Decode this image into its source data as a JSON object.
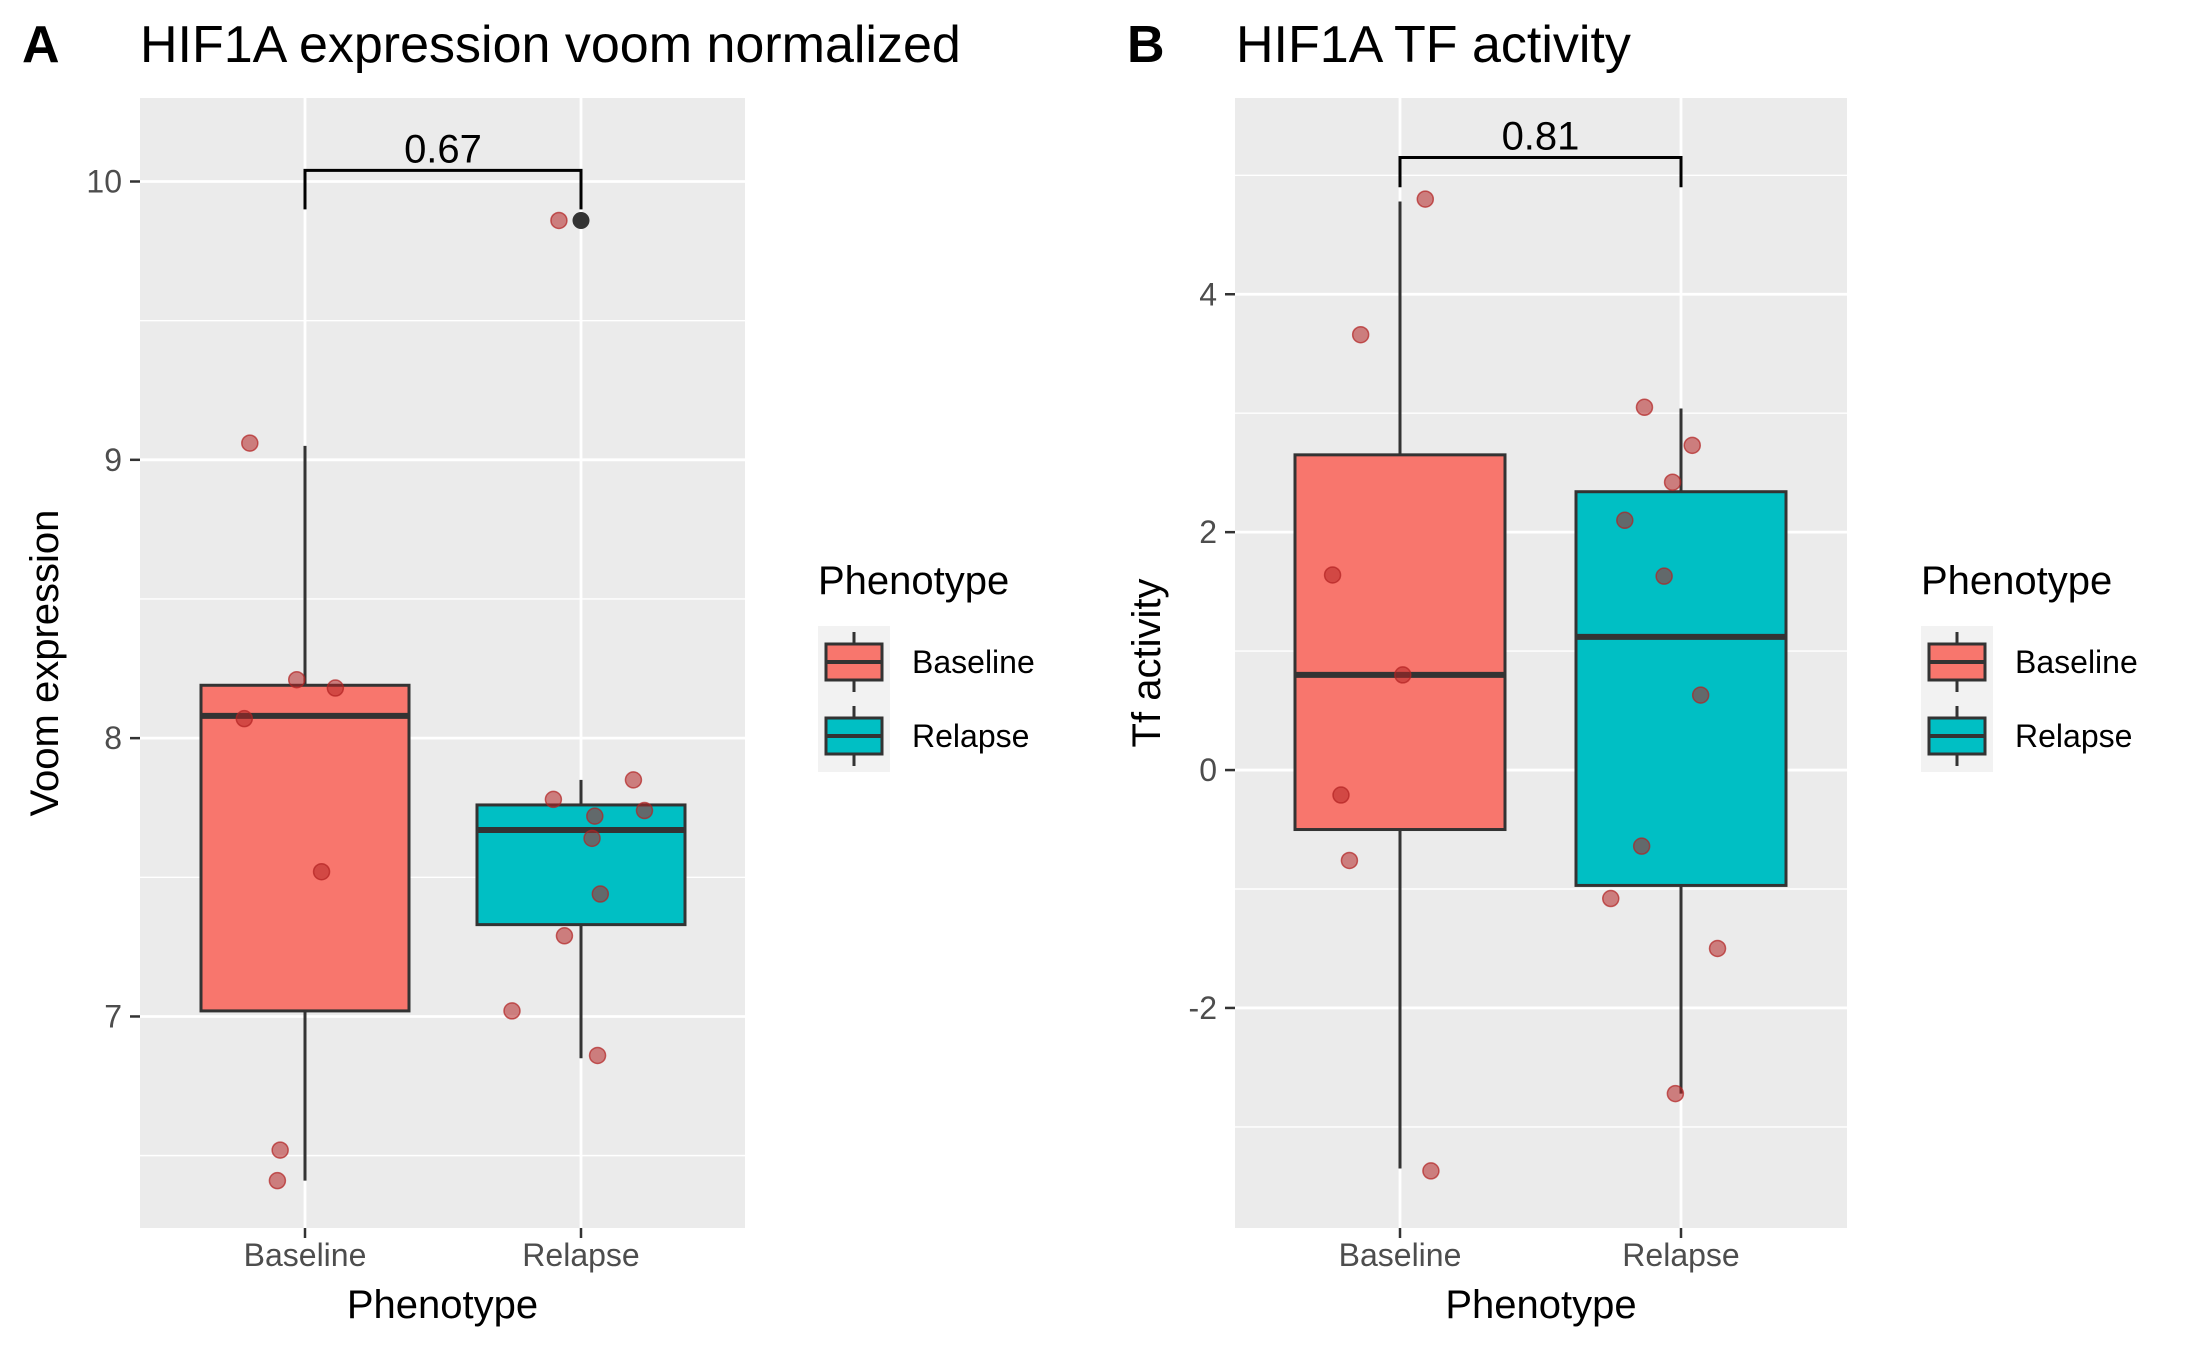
{
  "colors": {
    "panel_bg": "#ebebeb",
    "grid": "#ffffff",
    "baseline_fill": "#f8766d",
    "relapse_fill": "#00bfc4",
    "box_stroke": "#333333",
    "point_fill": "#b22222",
    "outlier": "#333333"
  },
  "chart_data": [
    {
      "type": "box",
      "tag": "A",
      "title": "HIF1A expression voom normalized",
      "xlabel": "Phenotype",
      "ylabel": "Voom expression",
      "categories": [
        "Baseline",
        "Relapse"
      ],
      "ylim": [
        6.24,
        10.3
      ],
      "yticks": [
        7,
        8,
        9,
        10
      ],
      "yticklabels": [
        "7",
        "8",
        "9",
        "10"
      ],
      "boxes": [
        {
          "group": "Baseline",
          "whisker_low": 6.41,
          "q1": 7.02,
          "median": 8.08,
          "q3": 8.19,
          "whisker_high": 9.05
        },
        {
          "group": "Relapse",
          "whisker_low": 6.85,
          "q1": 7.33,
          "median": 7.67,
          "q3": 7.76,
          "whisker_high": 7.85
        }
      ],
      "outliers": [
        {
          "group": "Relapse",
          "y": 9.86
        }
      ],
      "points": [
        {
          "group": "Baseline",
          "dx": -0.2,
          "y": 9.06
        },
        {
          "group": "Baseline",
          "dx": -0.03,
          "y": 8.21
        },
        {
          "group": "Baseline",
          "dx": 0.11,
          "y": 8.18
        },
        {
          "group": "Baseline",
          "dx": -0.22,
          "y": 8.07
        },
        {
          "group": "Baseline",
          "dx": 0.06,
          "y": 7.52
        },
        {
          "group": "Baseline",
          "dx": -0.09,
          "y": 6.52
        },
        {
          "group": "Baseline",
          "dx": -0.1,
          "y": 6.41
        },
        {
          "group": "Relapse",
          "dx": -0.08,
          "y": 9.86
        },
        {
          "group": "Relapse",
          "dx": 0.19,
          "y": 7.85
        },
        {
          "group": "Relapse",
          "dx": -0.1,
          "y": 7.78
        },
        {
          "group": "Relapse",
          "dx": 0.23,
          "y": 7.74
        },
        {
          "group": "Relapse",
          "dx": 0.05,
          "y": 7.72
        },
        {
          "group": "Relapse",
          "dx": 0.04,
          "y": 7.64
        },
        {
          "group": "Relapse",
          "dx": 0.07,
          "y": 7.44
        },
        {
          "group": "Relapse",
          "dx": -0.06,
          "y": 7.29
        },
        {
          "group": "Relapse",
          "dx": -0.25,
          "y": 7.02
        },
        {
          "group": "Relapse",
          "dx": 0.06,
          "y": 6.86
        }
      ],
      "comparison": {
        "label": "0.67",
        "y": 10.04,
        "tip": 9.9
      },
      "legend": {
        "title": "Phenotype",
        "entries": [
          "Baseline",
          "Relapse"
        ]
      }
    },
    {
      "type": "box",
      "tag": "B",
      "title": "HIF1A TF activity",
      "xlabel": "Phenotype",
      "ylabel": "Tf activity",
      "categories": [
        "Baseline",
        "Relapse"
      ],
      "ylim": [
        -3.85,
        5.65
      ],
      "yticks": [
        -2,
        0,
        2,
        4
      ],
      "yticklabels": [
        "-2",
        "0",
        "2",
        "4"
      ],
      "boxes": [
        {
          "group": "Baseline",
          "whisker_low": -3.35,
          "q1": -0.5,
          "median": 0.8,
          "q3": 2.65,
          "whisker_high": 4.78
        },
        {
          "group": "Relapse",
          "whisker_low": -2.72,
          "q1": -0.97,
          "median": 1.12,
          "q3": 2.34,
          "whisker_high": 3.04
        }
      ],
      "outliers": [],
      "points": [
        {
          "group": "Baseline",
          "dx": 0.09,
          "y": 4.8
        },
        {
          "group": "Baseline",
          "dx": -0.14,
          "y": 3.66
        },
        {
          "group": "Baseline",
          "dx": -0.24,
          "y": 1.64
        },
        {
          "group": "Baseline",
          "dx": 0.01,
          "y": 0.8
        },
        {
          "group": "Baseline",
          "dx": -0.21,
          "y": -0.21
        },
        {
          "group": "Baseline",
          "dx": -0.18,
          "y": -0.76
        },
        {
          "group": "Baseline",
          "dx": 0.11,
          "y": -3.37
        },
        {
          "group": "Relapse",
          "dx": -0.13,
          "y": 3.05
        },
        {
          "group": "Relapse",
          "dx": 0.04,
          "y": 2.73
        },
        {
          "group": "Relapse",
          "dx": -0.03,
          "y": 2.42
        },
        {
          "group": "Relapse",
          "dx": -0.2,
          "y": 2.1
        },
        {
          "group": "Relapse",
          "dx": -0.06,
          "y": 1.63
        },
        {
          "group": "Relapse",
          "dx": 0.07,
          "y": 0.63
        },
        {
          "group": "Relapse",
          "dx": -0.14,
          "y": -0.64
        },
        {
          "group": "Relapse",
          "dx": -0.25,
          "y": -1.08
        },
        {
          "group": "Relapse",
          "dx": 0.13,
          "y": -1.5
        },
        {
          "group": "Relapse",
          "dx": -0.02,
          "y": -2.72
        }
      ],
      "comparison": {
        "label": "0.81",
        "y": 5.15,
        "tip": 4.9
      },
      "legend": {
        "title": "Phenotype",
        "entries": [
          "Baseline",
          "Relapse"
        ]
      }
    }
  ]
}
